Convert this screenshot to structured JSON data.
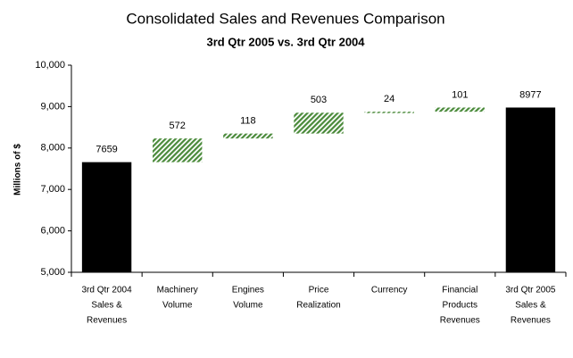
{
  "chart_data": {
    "type": "waterfall",
    "title": "Consolidated Sales and Revenues Comparison",
    "subtitle": "3rd Qtr 2005 vs. 3rd Qtr 2004",
    "y_label": "Millions of $",
    "categories": [
      [
        "3rd Qtr 2004",
        "Sales &",
        "Revenues"
      ],
      [
        "Machinery",
        "Volume"
      ],
      [
        "Engines",
        "Volume"
      ],
      [
        "Price",
        "Realization"
      ],
      [
        "Currency"
      ],
      [
        "Financial",
        "Products",
        "Revenues"
      ],
      [
        "3rd Qtr 2005",
        "Sales &",
        "Revenues"
      ]
    ],
    "values": [
      7659,
      572,
      118,
      503,
      24,
      101,
      8977
    ],
    "total_color": "#000000",
    "increase_color": "#4a8a3a",
    "ylim": [
      5000,
      10000
    ],
    "yticks": [
      {
        "value": 5000,
        "label": "5,000"
      },
      {
        "value": 6000,
        "label": "6,000"
      },
      {
        "value": 7000,
        "label": "7,000"
      },
      {
        "value": 8000,
        "label": "8,000"
      },
      {
        "value": 9000,
        "label": "9,000"
      },
      {
        "value": 10000,
        "label": "10,000"
      }
    ]
  }
}
